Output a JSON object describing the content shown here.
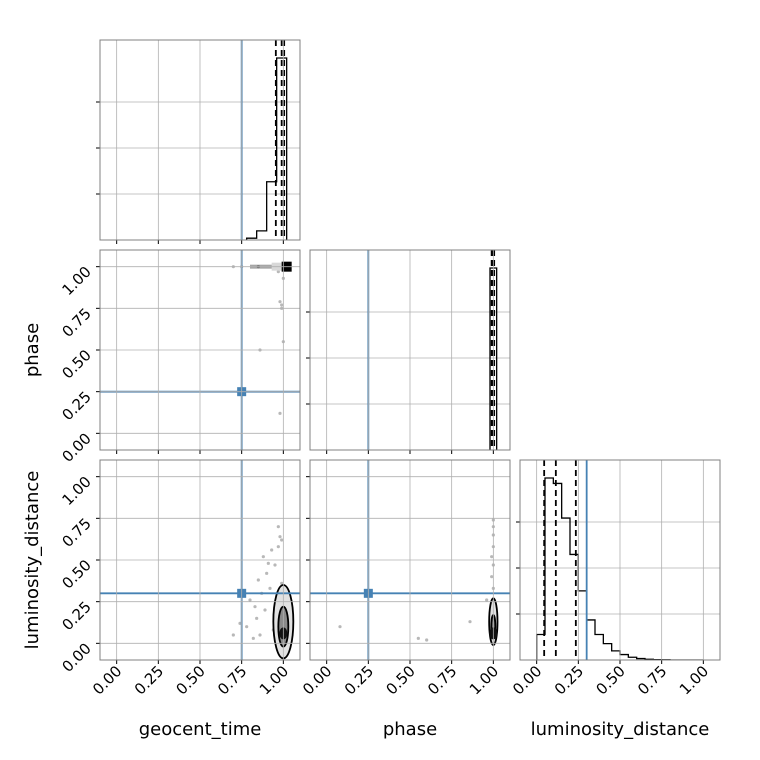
{
  "chart_data": {
    "type": "corner",
    "parameters": [
      "geocent_time",
      "phase",
      "luminosity_distance"
    ],
    "injection_color": "#4682b4",
    "injected_values": {
      "geocent_time": 0.75,
      "phase": 0.25,
      "luminosity_distance": 0.3
    },
    "axis_limits": {
      "geocent_time": [
        -0.1,
        1.1
      ],
      "phase": [
        -0.1,
        1.1
      ],
      "luminosity_distance": [
        -0.1,
        1.1
      ]
    },
    "tick_labels": [
      "0.00",
      "0.25",
      "0.50",
      "0.75",
      "1.00"
    ],
    "grid": true,
    "diagonals": [
      {
        "parameter": "geocent_time",
        "bin_edges": [
          0.78,
          0.84,
          0.9,
          0.96,
          1.02
        ],
        "counts": [
          0.01,
          0.05,
          0.32,
          1.0
        ],
        "quantiles": [
          0.955,
          0.99,
          1.005
        ]
      },
      {
        "parameter": "phase",
        "bin_edges": [
          0.98,
          1.02
        ],
        "counts": [
          1.0
        ],
        "quantiles": [
          0.99,
          1.0,
          1.005
        ]
      },
      {
        "parameter": "luminosity_distance",
        "bin_edges": [
          0.0,
          0.05,
          0.1,
          0.15,
          0.2,
          0.25,
          0.3,
          0.35,
          0.4,
          0.45,
          0.5,
          0.55,
          0.6,
          0.65,
          0.7,
          0.75,
          0.8,
          0.85,
          0.9,
          0.95,
          1.0
        ],
        "counts": [
          0.14,
          1.0,
          0.97,
          0.78,
          0.58,
          0.38,
          0.22,
          0.14,
          0.09,
          0.05,
          0.03,
          0.015,
          0.008,
          0.004,
          0.002,
          0.001,
          0,
          0,
          0,
          0
        ],
        "quantiles": [
          0.045,
          0.115,
          0.235
        ]
      }
    ],
    "scatter_panels": [
      {
        "x_param": "geocent_time",
        "y_param": "phase",
        "points": [
          [
            0.99,
            0.77
          ],
          [
            0.99,
            0.75
          ],
          [
            0.98,
            0.79
          ],
          [
            1.0,
            0.93
          ],
          [
            0.97,
            0.97
          ],
          [
            1.0,
            0.55
          ],
          [
            0.86,
            0.5
          ],
          [
            0.98,
            0.12
          ],
          [
            0.85,
            1.0
          ],
          [
            0.75,
            1.0
          ],
          [
            0.7,
            1.0
          ]
        ],
        "core": {
          "x_range": [
            0.8,
            1.02
          ],
          "y": 1.0
        }
      },
      {
        "x_param": "geocent_time",
        "y_param": "luminosity_distance",
        "points": [
          [
            0.97,
            0.7
          ],
          [
            0.98,
            0.64
          ],
          [
            0.93,
            0.56
          ],
          [
            0.88,
            0.52
          ],
          [
            0.95,
            0.47
          ],
          [
            0.9,
            0.42
          ],
          [
            0.85,
            0.38
          ],
          [
            0.99,
            0.36
          ],
          [
            0.92,
            0.33
          ],
          [
            0.87,
            0.3
          ],
          [
            0.8,
            0.26
          ],
          [
            0.96,
            0.25
          ],
          [
            0.89,
            0.2
          ],
          [
            0.84,
            0.15
          ],
          [
            0.78,
            0.1
          ],
          [
            0.94,
            0.08
          ],
          [
            0.86,
            0.05
          ],
          [
            0.82,
            0.03
          ],
          [
            0.74,
            0.12
          ],
          [
            0.7,
            0.05
          ],
          [
            0.97,
            0.58
          ],
          [
            0.91,
            0.48
          ],
          [
            0.83,
            0.22
          ],
          [
            0.99,
            0.62
          ]
        ],
        "contours": [
          {
            "level": "outer",
            "cx": 1.0,
            "cy": 0.13,
            "rx": 0.06,
            "ry": 0.22
          },
          {
            "level": "inner",
            "cx": 1.0,
            "cy": 0.1,
            "rx": 0.03,
            "ry": 0.12
          }
        ]
      },
      {
        "x_param": "phase",
        "y_param": "luminosity_distance",
        "points": [
          [
            1.0,
            0.74
          ],
          [
            1.0,
            0.65
          ],
          [
            1.0,
            0.58
          ],
          [
            1.0,
            0.47
          ],
          [
            0.99,
            0.4
          ],
          [
            1.0,
            0.33
          ],
          [
            0.86,
            0.13
          ],
          [
            0.96,
            0.26
          ],
          [
            0.08,
            0.1
          ],
          [
            0.55,
            0.03
          ],
          [
            0.6,
            0.02
          ],
          [
            1.0,
            0.7
          ],
          [
            0.99,
            0.52
          ]
        ],
        "contours": [
          {
            "level": "outer",
            "cx": 1.0,
            "cy": 0.13,
            "rx": 0.025,
            "ry": 0.14
          },
          {
            "level": "inner",
            "cx": 1.0,
            "cy": 0.1,
            "rx": 0.012,
            "ry": 0.07
          }
        ]
      }
    ]
  }
}
